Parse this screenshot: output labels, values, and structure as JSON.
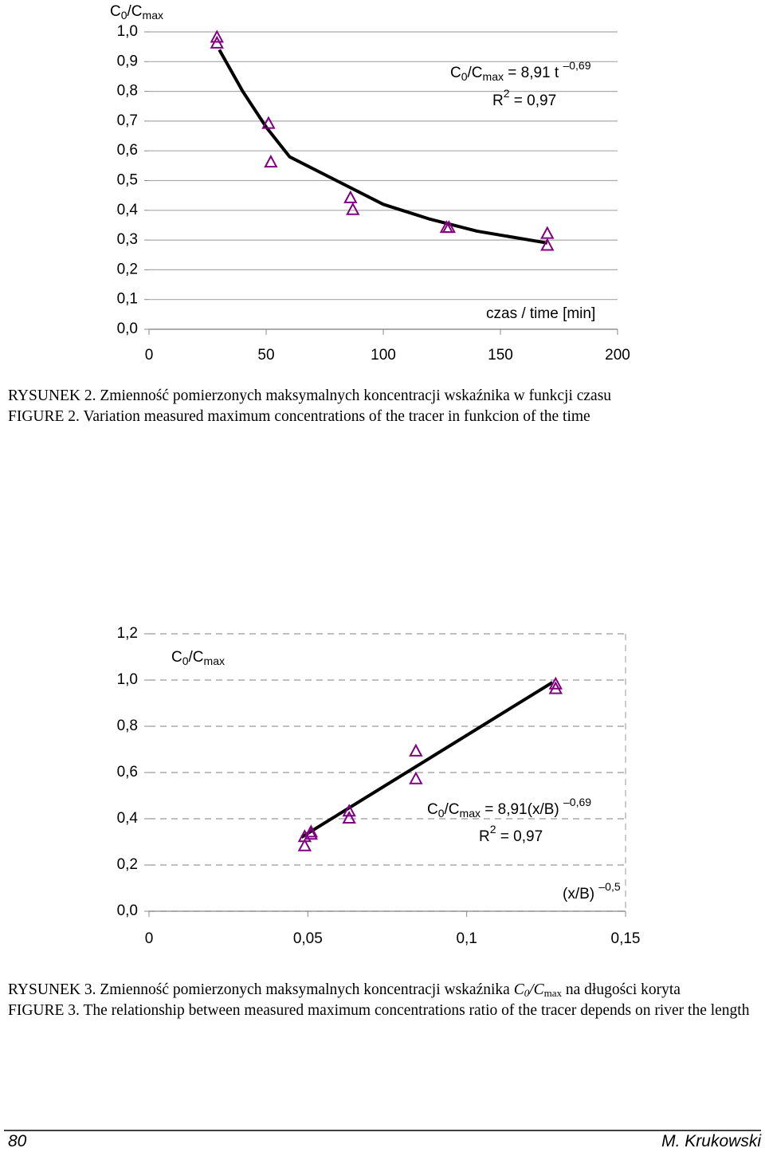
{
  "chart_data": [
    {
      "type": "scatter",
      "ylabel": [
        "C",
        "0",
        "/C",
        "max"
      ],
      "xlabel": [
        "czas / time [min]"
      ],
      "equation": [
        "C",
        "0",
        "/C",
        "max",
        " = 8,91 t ",
        "–0,69"
      ],
      "r2": [
        "R",
        "2",
        " = 0,97"
      ],
      "x": [
        29,
        29,
        51,
        52,
        86,
        87,
        127,
        128,
        170,
        170
      ],
      "values": [
        0.98,
        0.96,
        0.69,
        0.56,
        0.44,
        0.4,
        0.34,
        0.34,
        0.32,
        0.28
      ],
      "color": "#800080",
      "trendline": {
        "x": [
          30,
          40,
          50,
          60,
          80,
          100,
          120,
          140,
          170
        ],
        "values": [
          0.94,
          0.8,
          0.68,
          0.58,
          0.5,
          0.42,
          0.37,
          0.33,
          0.29
        ],
        "color": "#000000"
      },
      "xlim": [
        0,
        200
      ],
      "ylim": [
        0,
        1
      ],
      "xticks": [
        0,
        50,
        100,
        150,
        200
      ],
      "yticks": [
        {
          "value": 0,
          "label": "0,0"
        },
        {
          "value": 0.1,
          "label": "0,1"
        },
        {
          "value": 0.2,
          "label": "0,2"
        },
        {
          "value": 0.3,
          "label": "0,3"
        },
        {
          "value": 0.4,
          "label": "0,4"
        },
        {
          "value": 0.5,
          "label": "0,5"
        },
        {
          "value": 0.6,
          "label": "0,6"
        },
        {
          "value": 0.7,
          "label": "0,7"
        },
        {
          "value": 0.8,
          "label": "0,8"
        },
        {
          "value": 0.9,
          "label": "0,9"
        },
        {
          "value": 1,
          "label": "1,0"
        }
      ],
      "grid": "solid"
    },
    {
      "type": "scatter",
      "ylabel": [
        "C",
        "0",
        "/C",
        "max"
      ],
      "xlabel": [
        "(x/B) ",
        "–0,5"
      ],
      "equation": [
        "C",
        "0",
        "/C",
        "max",
        " = 8,91(x/B) ",
        "–0,69"
      ],
      "r2": [
        "R",
        "2",
        " = 0,97"
      ],
      "x": [
        0.049,
        0.049,
        0.051,
        0.051,
        0.063,
        0.063,
        0.084,
        0.084,
        0.128,
        0.128
      ],
      "values": [
        0.32,
        0.28,
        0.34,
        0.33,
        0.43,
        0.4,
        0.69,
        0.57,
        0.98,
        0.96
      ],
      "color": "#800080",
      "trendline": {
        "x": [
          0.048,
          0.127
        ],
        "values": [
          0.32,
          0.99
        ],
        "color": "#000000"
      },
      "xlim": [
        0,
        0.15
      ],
      "ylim": [
        0,
        1.2
      ],
      "xticks": [
        0,
        {
          "value": 0.05,
          "label": "0,05"
        },
        {
          "value": 0.1,
          "label": "0,1"
        },
        {
          "value": 0.15,
          "label": "0,15"
        }
      ],
      "yticks": [
        {
          "value": 0,
          "label": "0,0"
        },
        {
          "value": 0.2,
          "label": "0,2"
        },
        {
          "value": 0.4,
          "label": "0,4"
        },
        {
          "value": 0.6,
          "label": "0,6"
        },
        {
          "value": 0.8,
          "label": "0,8"
        },
        {
          "value": 1,
          "label": "1,0"
        },
        {
          "value": 1.2,
          "label": "1,2"
        }
      ],
      "grid": "dashed"
    }
  ],
  "captions": [
    {
      "rysunek": [
        "RYSUNEK 2. Zmienność pomierzonych maksymalnych koncentracji wskaźnika w funkcji czasu"
      ],
      "figure": "FIGURE 2. Variation measured maximum concentrations of the tracer in funkcion of the time"
    },
    {
      "rysunek": [
        "RYSUNEK 3. Zmienność pomierzonych maksymalnych koncentracji wskaźnika ",
        "C",
        "0",
        "/C",
        "max",
        " na długości koryta"
      ],
      "figure": "FIGURE 3. The relationship between measured maximum concentrations ratio of the tracer depends on river the length"
    }
  ],
  "footer": {
    "page": "80",
    "author": "M. Krukowski"
  }
}
